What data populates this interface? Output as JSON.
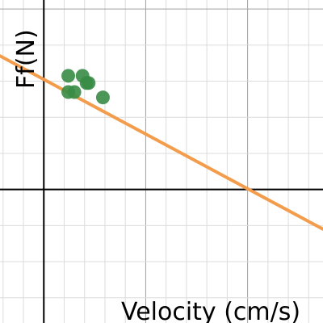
{
  "chart_data": {
    "type": "scatter",
    "title": "",
    "xlabel": "Velocity (cm/s)",
    "ylabel": "Ff(N)",
    "xlim": [
      -2.15,
      13.7
    ],
    "ylim": [
      -3.7,
      5.25
    ],
    "grid": true,
    "colors": {
      "points": "#388c46",
      "trendline": "#f39c4b",
      "grid_minor": "#dcdcdc",
      "grid_major": "#a0a0a0",
      "axis": "#000000"
    },
    "series": [
      {
        "kind": "points",
        "x": [
          1.2,
          1.2,
          1.5,
          1.9,
          2.1,
          2.2,
          2.9
        ],
        "y": [
          3.15,
          2.7,
          2.7,
          3.15,
          2.95,
          2.95,
          2.55
        ]
      },
      {
        "kind": "trendline",
        "x": [
          -2.15,
          13.7
        ],
        "y": [
          3.7,
          -1.1
        ]
      }
    ]
  }
}
